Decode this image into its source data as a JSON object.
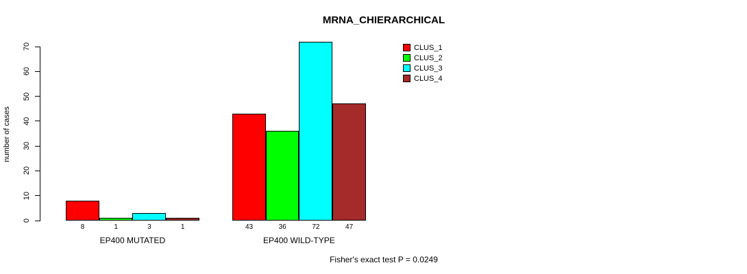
{
  "chart_data": {
    "type": "bar",
    "title": "MRNA_CHIERARCHICAL",
    "ylabel": "number of cases",
    "xlabel": "",
    "ylim": [
      0,
      70
    ],
    "yticks": [
      0,
      10,
      20,
      30,
      40,
      50,
      60,
      70
    ],
    "grid": false,
    "legend_position": "top-right",
    "background_color": "#FFFFFF",
    "bar_border_color": "#000000",
    "categories": [
      "EP400 MUTATED",
      "EP400 WILD-TYPE"
    ],
    "series": [
      {
        "name": "CLUS_1",
        "color": "#FF0000",
        "values": [
          8,
          43
        ]
      },
      {
        "name": "CLUS_2",
        "color": "#00FF00",
        "values": [
          1,
          36
        ]
      },
      {
        "name": "CLUS_3",
        "color": "#00FFFF",
        "values": [
          3,
          72
        ]
      },
      {
        "name": "CLUS_4",
        "color": "#A52A2A",
        "values": [
          1,
          47
        ]
      }
    ],
    "bar_value_labels": [
      [
        8,
        1,
        3,
        1
      ],
      [
        43,
        36,
        72,
        47
      ]
    ],
    "annotation": "Fisher's exact test P = 0.0249"
  }
}
